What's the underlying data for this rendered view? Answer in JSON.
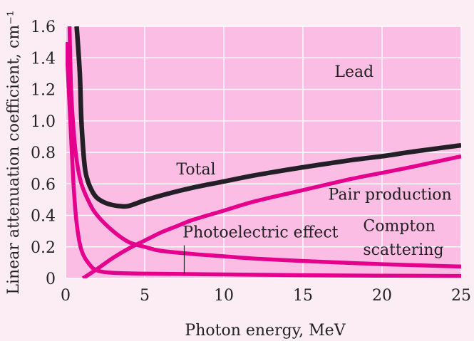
{
  "chart_data": {
    "type": "line",
    "title": "",
    "xlabel": "Photon energy, MeV",
    "ylabel": "Linear attenuation coefficient, cm⁻¹",
    "xlim": [
      0,
      25
    ],
    "ylim": [
      0,
      1.6
    ],
    "x_ticks": [
      "0",
      "5",
      "10",
      "15",
      "20",
      "25"
    ],
    "y_ticks": [
      "0",
      "0.2",
      "0.4",
      "0.6",
      "0.8",
      "1.0",
      "1.2",
      "1.4",
      "1.6"
    ],
    "grid": true,
    "legend": "none",
    "plot_background": "#fbbde3",
    "page_background": "#fcedf5",
    "series": [
      {
        "key": "total",
        "color": "#222026",
        "points": [
          [
            0.7,
            1.6
          ],
          [
            0.9,
            1.3
          ],
          [
            1.0,
            1.0
          ],
          [
            1.2,
            0.72
          ],
          [
            1.4,
            0.62
          ],
          [
            1.7,
            0.55
          ],
          [
            2.0,
            0.51
          ],
          [
            2.5,
            0.48
          ],
          [
            3.0,
            0.465
          ],
          [
            3.5,
            0.458
          ],
          [
            4.0,
            0.46
          ],
          [
            5.0,
            0.495
          ],
          [
            6.0,
            0.525
          ],
          [
            8.0,
            0.575
          ],
          [
            10.0,
            0.615
          ],
          [
            12.0,
            0.655
          ],
          [
            15.0,
            0.705
          ],
          [
            18.0,
            0.75
          ],
          [
            20.0,
            0.775
          ],
          [
            22.0,
            0.805
          ],
          [
            25.0,
            0.845
          ]
        ]
      },
      {
        "key": "pair-production",
        "color": "#e4008c",
        "points": [
          [
            1.1,
            0.0
          ],
          [
            2.0,
            0.06
          ],
          [
            3.0,
            0.13
          ],
          [
            4.0,
            0.19
          ],
          [
            5.0,
            0.24
          ],
          [
            6.0,
            0.29
          ],
          [
            7.0,
            0.33
          ],
          [
            8.0,
            0.37
          ],
          [
            10.0,
            0.43
          ],
          [
            12.0,
            0.49
          ],
          [
            15.0,
            0.56
          ],
          [
            18.0,
            0.63
          ],
          [
            20.0,
            0.67
          ],
          [
            22.0,
            0.71
          ],
          [
            25.0,
            0.775
          ]
        ]
      },
      {
        "key": "compton-scattering",
        "color": "#e4008c",
        "points": [
          [
            0.25,
            1.6
          ],
          [
            0.35,
            1.2
          ],
          [
            0.5,
            0.95
          ],
          [
            0.7,
            0.75
          ],
          [
            1.0,
            0.6
          ],
          [
            1.5,
            0.48
          ],
          [
            2.0,
            0.4
          ],
          [
            3.0,
            0.3
          ],
          [
            4.0,
            0.23
          ],
          [
            5.0,
            0.2
          ],
          [
            6.0,
            0.175
          ],
          [
            8.0,
            0.155
          ],
          [
            10.0,
            0.14
          ],
          [
            12.0,
            0.125
          ],
          [
            15.0,
            0.11
          ],
          [
            20.0,
            0.09
          ],
          [
            25.0,
            0.075
          ]
        ]
      },
      {
        "key": "photoelectric-effect",
        "color": "#e4008c",
        "points": [
          [
            0.05,
            1.5
          ],
          [
            0.15,
            1.3
          ],
          [
            0.3,
            1.0
          ],
          [
            0.5,
            0.6
          ],
          [
            0.7,
            0.35
          ],
          [
            1.0,
            0.18
          ],
          [
            1.5,
            0.09
          ],
          [
            2.0,
            0.05
          ],
          [
            3.0,
            0.035
          ],
          [
            5.0,
            0.03
          ],
          [
            10.0,
            0.025
          ],
          [
            15.0,
            0.02
          ],
          [
            20.0,
            0.017
          ],
          [
            25.0,
            0.015
          ]
        ]
      }
    ],
    "annotations": [
      {
        "key": "lead",
        "text": "Lead",
        "x": 17.0,
        "y": 1.28
      },
      {
        "key": "total",
        "text": "Total",
        "x": 7.0,
        "y": 0.66
      },
      {
        "key": "pair-production",
        "text": "Pair production",
        "x": 16.6,
        "y": 0.5
      },
      {
        "key": "compton-line1",
        "text": "Compton",
        "x": 18.8,
        "y": 0.3
      },
      {
        "key": "compton-line2",
        "text": "scattering",
        "x": 18.8,
        "y": 0.15
      },
      {
        "key": "photoelectric-effect",
        "text": "Photoelectric effect",
        "x": 7.4,
        "y": 0.26
      }
    ],
    "pointer_lines": [
      {
        "key": "photoelectric-pointer",
        "x": 7.5,
        "y_from": 0.21,
        "y_to": 0.03
      }
    ]
  }
}
